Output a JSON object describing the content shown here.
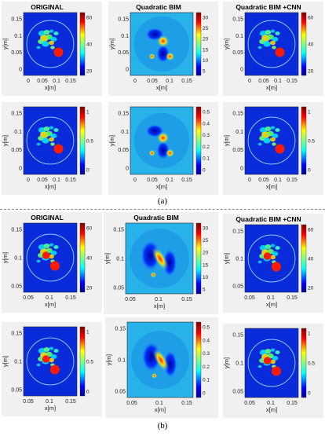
{
  "sections": [
    {
      "label": "(a)",
      "panels": [
        {
          "title": "ORIGINAL",
          "xlabel": "x[m]",
          "ylabel": "y[m]",
          "xticks": [
            "0",
            "0.05",
            "0.1",
            "0.15"
          ],
          "yticks": [
            "0.15",
            "0.1",
            "0.05",
            "0"
          ],
          "colorbar_ticks": [
            "60",
            "40",
            "20"
          ],
          "style": "original"
        },
        {
          "title": "Quadratic BIM",
          "xlabel": "x[m]",
          "ylabel": "y[m]",
          "xticks": [
            "0",
            "0.05",
            "0.1",
            "0.15"
          ],
          "yticks": [
            "0.15",
            "0.1",
            "0.05",
            "0"
          ],
          "colorbar_ticks": [
            "30",
            "25",
            "20",
            "15",
            "10",
            "5"
          ],
          "style": "bim"
        },
        {
          "title": "Quadratic BIM +CNN",
          "xlabel": "x[m]",
          "ylabel": "y[m]",
          "xticks": [
            "0",
            "0.05",
            "0.1",
            "0.15"
          ],
          "yticks": [
            "0.15",
            "0.1",
            "0.05",
            "0"
          ],
          "colorbar_ticks": [
            "60",
            "40",
            "20"
          ],
          "style": "original"
        },
        {
          "title": "",
          "xlabel": "x[m]",
          "ylabel": "y[m]",
          "xticks": [
            "0",
            "0.05",
            "0.1",
            "0.15"
          ],
          "yticks": [
            "0.15",
            "0.1",
            "0.05",
            "0"
          ],
          "colorbar_ticks": [
            "1",
            "0.5",
            "0"
          ],
          "style": "original"
        },
        {
          "title": "",
          "xlabel": "x[m]",
          "ylabel": "y[m]",
          "xticks": [
            "0",
            "0.05",
            "0.1",
            "0.15"
          ],
          "yticks": [
            "0.15",
            "0.1",
            "0.05",
            "0"
          ],
          "colorbar_ticks": [
            "0.5",
            "0.4",
            "0.3",
            "0.2",
            "0.1",
            "0"
          ],
          "style": "bim"
        },
        {
          "title": "",
          "xlabel": "x[m]",
          "ylabel": "y[m]",
          "xticks": [
            "0",
            "0.05",
            "0.1",
            "0.15"
          ],
          "yticks": [
            "0.15",
            "0.1",
            "0.05",
            "0"
          ],
          "colorbar_ticks": [
            "1",
            "0.5",
            "0"
          ],
          "style": "original"
        }
      ]
    },
    {
      "label": "(b)",
      "panels": [
        {
          "title": "ORIGINAL",
          "xlabel": "x[m]",
          "ylabel": "y[m]",
          "xticks": [
            "0.05",
            "0.1",
            "0.15"
          ],
          "yticks": [
            "0.15",
            "0.1",
            "0.05"
          ],
          "colorbar_ticks": [
            "60",
            "40",
            "20"
          ],
          "style": "original2"
        },
        {
          "title": "Quadratic BIM",
          "xlabel": "x[m]",
          "ylabel": "y[m]",
          "xticks": [
            "0.05",
            "0.1",
            "0.15"
          ],
          "yticks": [
            "0.15",
            "0.1",
            "0.05"
          ],
          "colorbar_ticks": [
            "30",
            "25",
            "20",
            "15",
            "10",
            "5"
          ],
          "style": "bim2"
        },
        {
          "title": "Quadratic BIM +CNN",
          "xlabel": "x[m]",
          "ylabel": "y[m]",
          "xticks": [
            "0.05",
            "0.1",
            "0.15"
          ],
          "yticks": [
            "0.15",
            "0.1",
            "0.05"
          ],
          "colorbar_ticks": [
            "60",
            "40",
            "20"
          ],
          "style": "original2"
        },
        {
          "title": "",
          "xlabel": "x[m]",
          "ylabel": "y[m]",
          "xticks": [
            "0.05",
            "0.1",
            "0.15"
          ],
          "yticks": [
            "0.15",
            "0.1",
            "0.05"
          ],
          "colorbar_ticks": [
            "1",
            "0.5",
            "0"
          ],
          "style": "original2"
        },
        {
          "title": "",
          "xlabel": "x[m]",
          "ylabel": "y[m]",
          "xticks": [
            "0.05",
            "0.1",
            "0.15"
          ],
          "yticks": [
            "0.15",
            "0.1",
            "0.05"
          ],
          "colorbar_ticks": [
            "0.5",
            "0.4",
            "0.3",
            "0.2",
            "0.1",
            "0"
          ],
          "style": "bim2"
        },
        {
          "title": "",
          "xlabel": "x[m]",
          "ylabel": "y[m]",
          "xticks": [
            "0.05",
            "0.1",
            "0.15"
          ],
          "yticks": [
            "0.15",
            "0.1",
            "0.05"
          ],
          "colorbar_ticks": [
            "1",
            "0.5",
            "0"
          ],
          "style": "original2"
        }
      ]
    }
  ],
  "colors": {
    "background_blue": "#0a2bd9",
    "bim_background": "#27b2ea",
    "panel_gray": "#f0f0f0",
    "colorbar": [
      "#800000",
      "#ff0000",
      "#ff8000",
      "#ffff00",
      "#80ff80",
      "#00ffff",
      "#0080ff",
      "#0000ff",
      "#00008f"
    ]
  }
}
